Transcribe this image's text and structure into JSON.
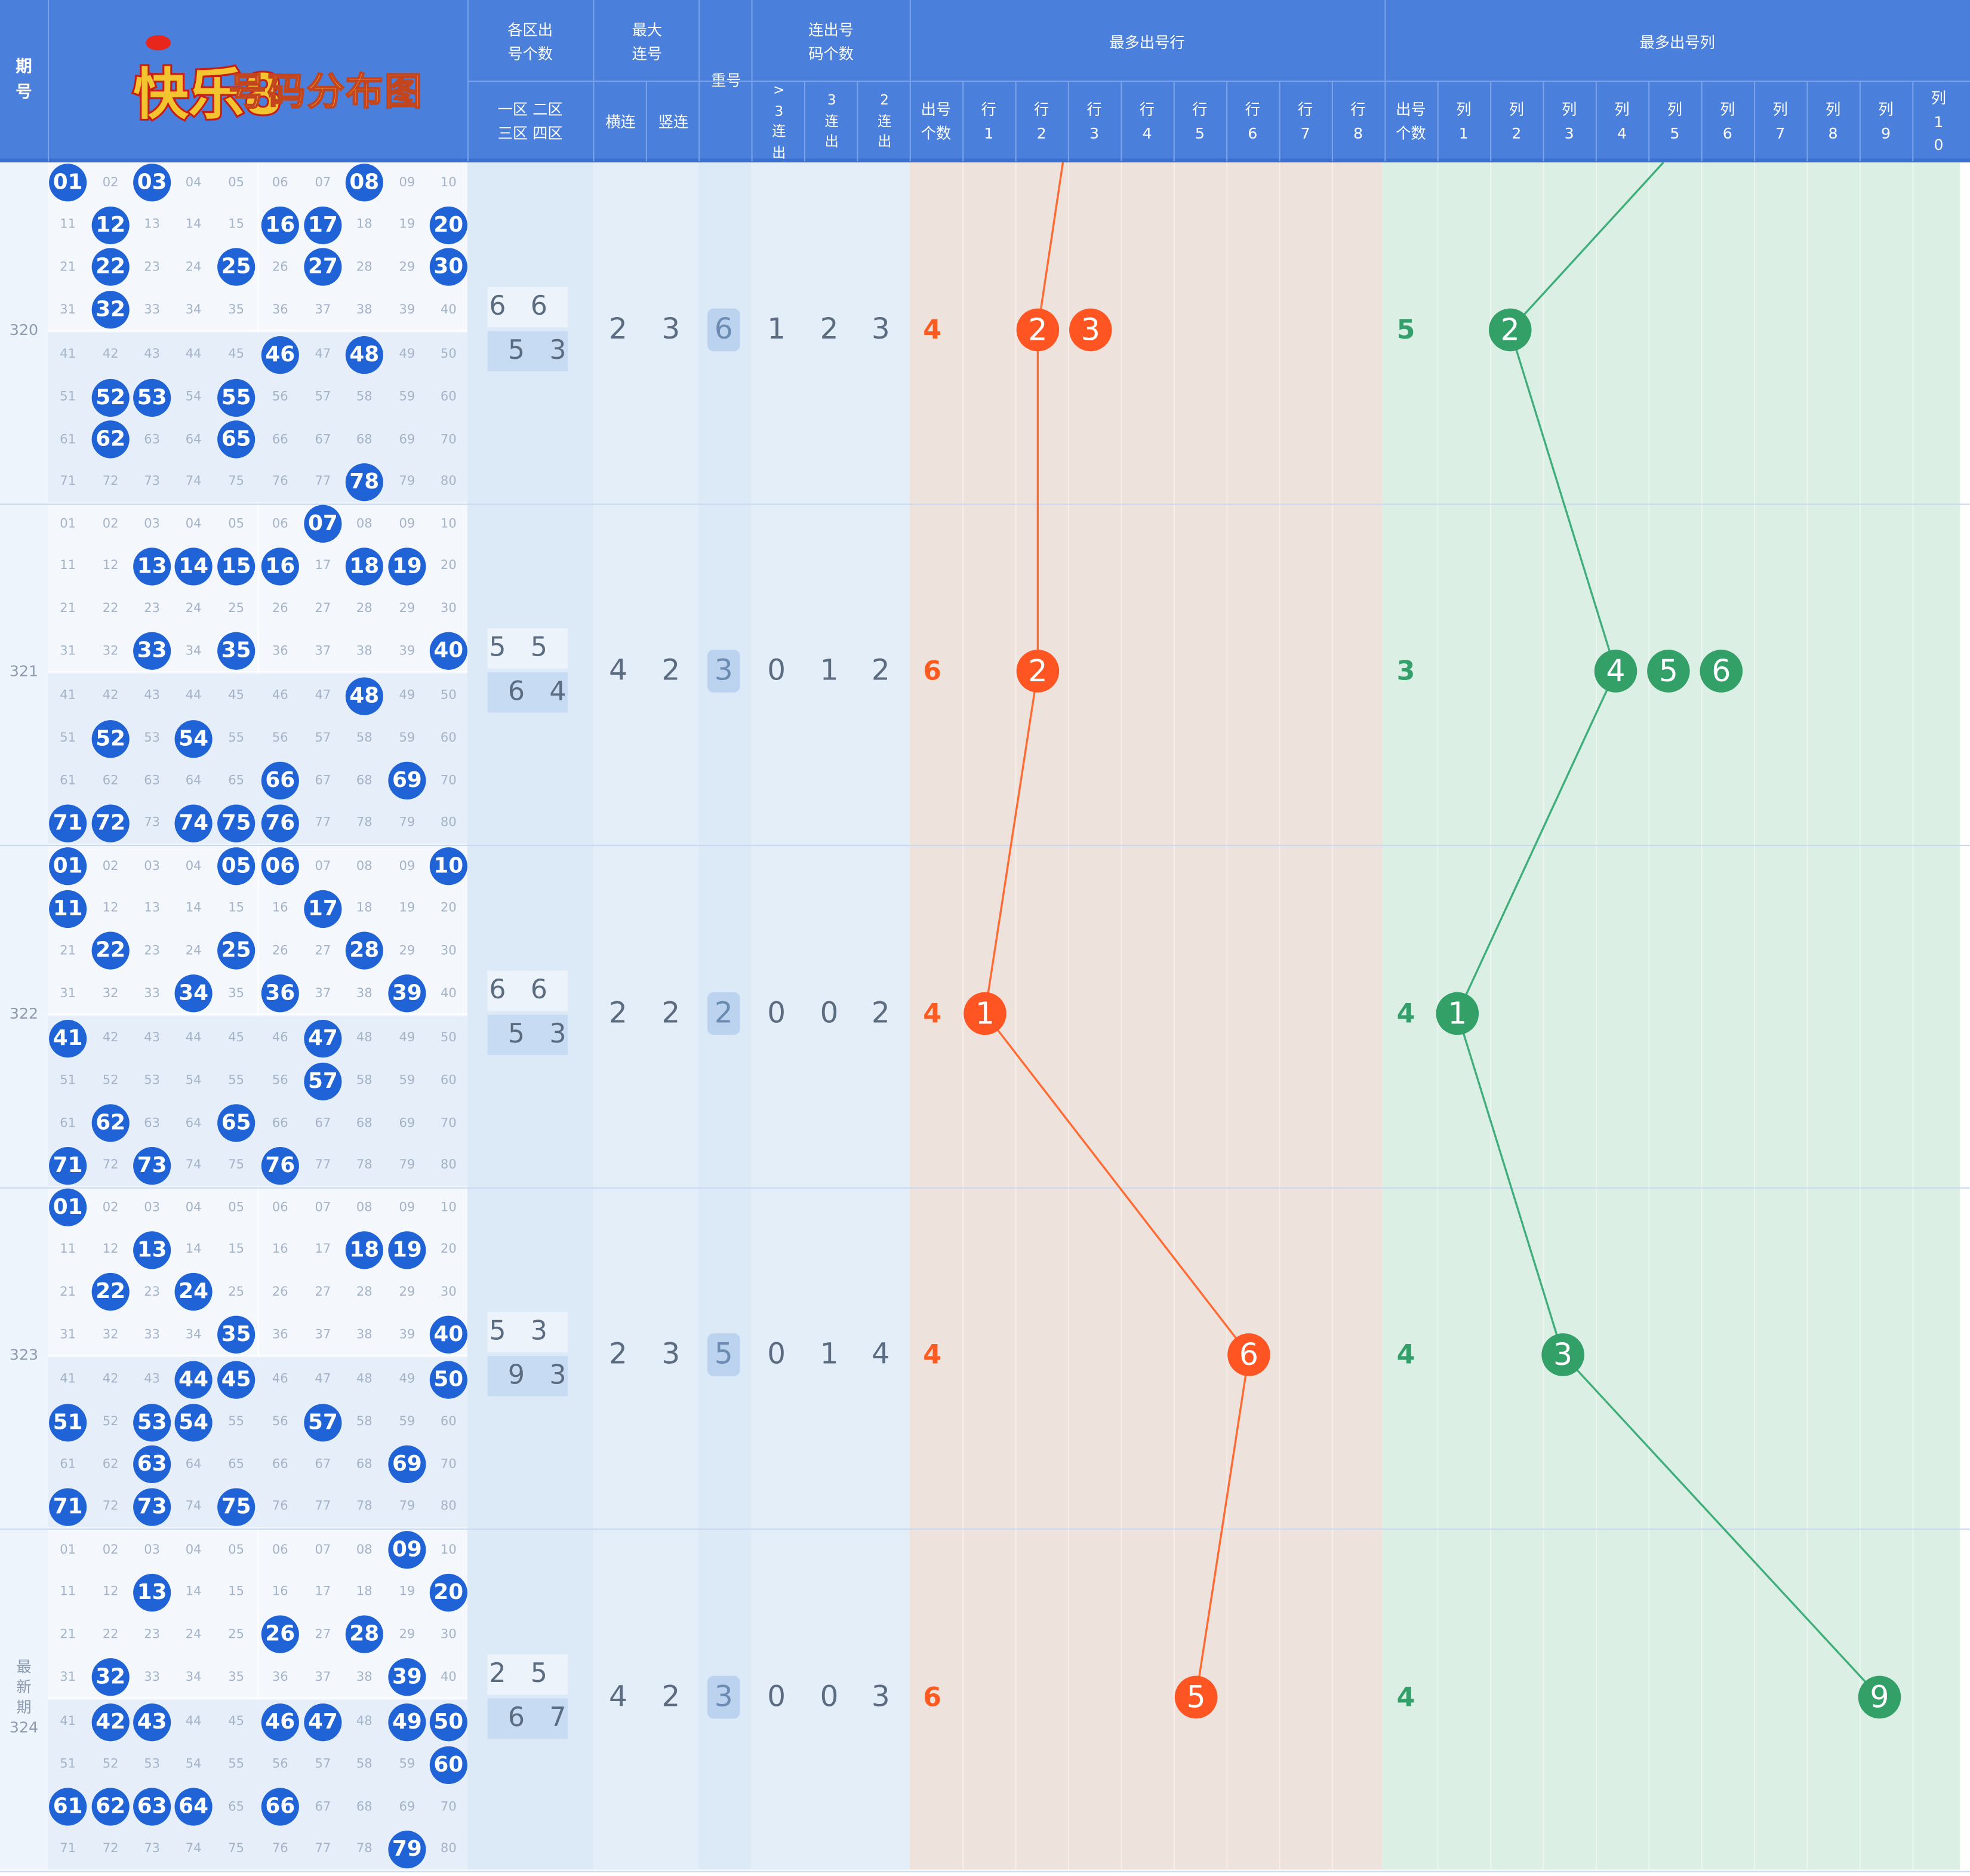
{
  "header": {
    "period_col": "期号",
    "logo_text": "快乐8",
    "title": "号码分布图",
    "zone_group": "各区出号个数",
    "zone_sub": "一区 二区 三区 四区",
    "maxcons_group": "最大连号",
    "horiz": "横连",
    "vert": "竖连",
    "repeat": "重号",
    "consec_group": "连出号码个数",
    "consec_cols": [
      ">3连出",
      "3连出",
      "2连出"
    ],
    "maxrow_group": "最多出号行",
    "maxcol_group": "最多出号列",
    "count_label": "出号个数",
    "row_labels": [
      "行1",
      "行2",
      "行3",
      "行4",
      "行5",
      "行6",
      "行7",
      "行8"
    ],
    "col_labels": [
      "列1",
      "列2",
      "列3",
      "列4",
      "列5",
      "列6",
      "列7",
      "列8",
      "列9",
      "列10"
    ]
  },
  "colors": {
    "header_bg": "#4a7fdc",
    "hit_ball": "#2063d6",
    "row_line": "#ff6a33",
    "col_line": "#3fae7a"
  },
  "periods": [
    {
      "id": "320",
      "label": [
        "320"
      ],
      "hits": [
        1,
        3,
        8,
        12,
        16,
        17,
        20,
        22,
        25,
        27,
        30,
        32,
        46,
        48,
        52,
        53,
        55,
        62,
        65,
        78
      ],
      "zones": [
        6,
        6,
        5,
        3
      ],
      "horiz": 2,
      "vert": 3,
      "repeat": 6,
      "consec": [
        1,
        2,
        3
      ],
      "row_count": 4,
      "max_rows": [
        2,
        3
      ],
      "col_count": 5,
      "max_cols": [
        2
      ]
    },
    {
      "id": "321",
      "label": [
        "321"
      ],
      "hits": [
        7,
        13,
        14,
        15,
        16,
        18,
        19,
        33,
        35,
        40,
        48,
        52,
        54,
        66,
        69,
        71,
        72,
        74,
        75,
        76
      ],
      "zones": [
        5,
        5,
        6,
        4
      ],
      "horiz": 4,
      "vert": 2,
      "repeat": 3,
      "consec": [
        0,
        1,
        2
      ],
      "row_count": 6,
      "max_rows": [
        2
      ],
      "col_count": 3,
      "max_cols": [
        4,
        5,
        6
      ]
    },
    {
      "id": "322",
      "label": [
        "322"
      ],
      "hits": [
        1,
        5,
        6,
        10,
        11,
        17,
        22,
        25,
        28,
        34,
        36,
        39,
        41,
        47,
        57,
        62,
        65,
        71,
        73,
        76
      ],
      "zones": [
        6,
        6,
        5,
        3
      ],
      "horiz": 2,
      "vert": 2,
      "repeat": 2,
      "consec": [
        0,
        0,
        2
      ],
      "row_count": 4,
      "max_rows": [
        1
      ],
      "col_count": 4,
      "max_cols": [
        1
      ]
    },
    {
      "id": "323",
      "label": [
        "323"
      ],
      "hits": [
        1,
        13,
        18,
        19,
        22,
        24,
        35,
        40,
        44,
        45,
        50,
        51,
        53,
        54,
        57,
        63,
        69,
        71,
        73,
        75
      ],
      "zones": [
        5,
        3,
        9,
        3
      ],
      "horiz": 2,
      "vert": 3,
      "repeat": 5,
      "consec": [
        0,
        1,
        4
      ],
      "row_count": 4,
      "max_rows": [
        6
      ],
      "col_count": 4,
      "max_cols": [
        3
      ]
    },
    {
      "id": "324",
      "label": [
        "最",
        "新",
        "期",
        "324"
      ],
      "hits": [
        9,
        13,
        20,
        26,
        28,
        32,
        39,
        42,
        43,
        46,
        47,
        49,
        50,
        60,
        61,
        62,
        63,
        64,
        66,
        79
      ],
      "zones": [
        2,
        5,
        6,
        7
      ],
      "horiz": 4,
      "vert": 2,
      "repeat": 3,
      "consec": [
        0,
        0,
        3
      ],
      "row_count": 6,
      "max_rows": [
        5
      ],
      "col_count": 4,
      "max_cols": [
        9
      ]
    }
  ]
}
